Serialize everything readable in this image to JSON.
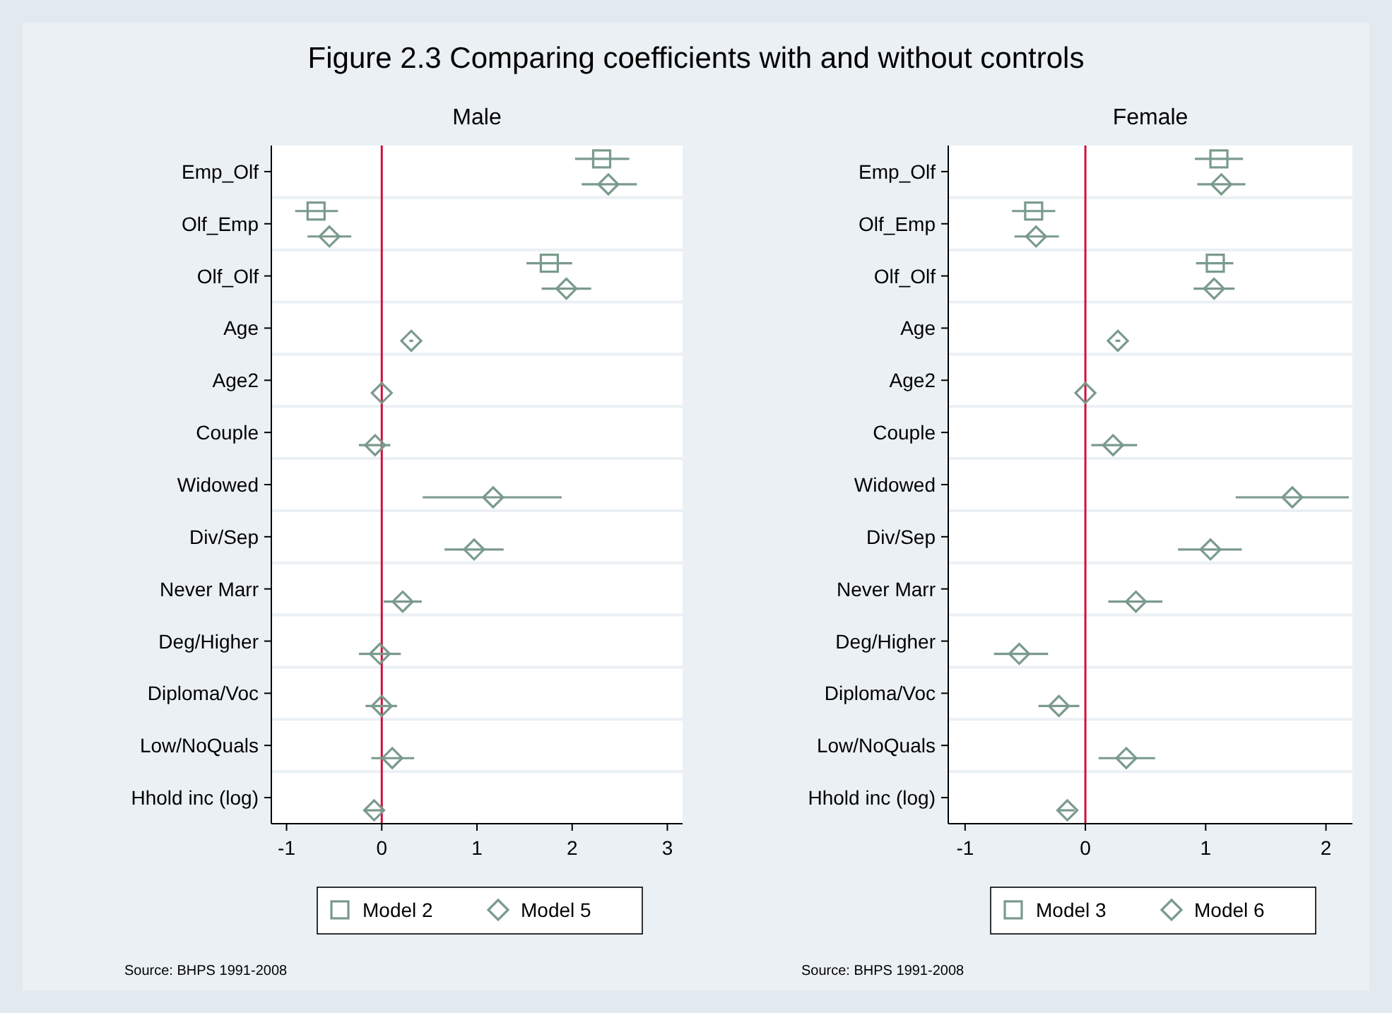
{
  "chart_data": [
    {
      "type": "scatter",
      "title": "Figure 2.3 Comparing coefficients with and without controls",
      "subtitle": "Male",
      "orientation": "horizontal",
      "categories": [
        "Emp_Olf",
        "Olf_Emp",
        "Olf_Olf",
        "Age",
        "Age2",
        "Couple",
        "Widowed",
        "Div/Sep",
        "Never Marr",
        "Deg/Higher",
        "Diploma/Voc",
        "Low/NoQuals",
        "Hhold inc (log)"
      ],
      "series": [
        {
          "name": "Model 2",
          "color": "#7a9a8c",
          "marker": "square",
          "values": [
            2.31,
            -0.69,
            1.76,
            null,
            null,
            null,
            null,
            null,
            null,
            null,
            null,
            null,
            null
          ],
          "errors": [
            [
              2.03,
              2.6
            ],
            [
              -0.91,
              -0.46
            ],
            [
              1.52,
              2.0
            ],
            null,
            null,
            null,
            null,
            null,
            null,
            null,
            null,
            null,
            null
          ]
        },
        {
          "name": "Model 5",
          "color": "#7a9a8c",
          "marker": "diamond",
          "values": [
            2.38,
            -0.55,
            1.94,
            0.31,
            0.0,
            -0.07,
            1.17,
            0.97,
            0.22,
            -0.02,
            0.0,
            0.11,
            -0.08
          ],
          "errors": [
            [
              2.1,
              2.68
            ],
            [
              -0.78,
              -0.32
            ],
            [
              1.68,
              2.2
            ],
            [
              0.29,
              0.33
            ],
            null,
            [
              -0.24,
              0.09
            ],
            [
              0.43,
              1.89
            ],
            [
              0.66,
              1.28
            ],
            [
              0.02,
              0.42
            ],
            [
              -0.24,
              0.2
            ],
            [
              -0.17,
              0.16
            ],
            [
              -0.11,
              0.34
            ],
            [
              -0.17,
              0.01
            ]
          ]
        }
      ],
      "xlim": [
        -1.16,
        3.16
      ],
      "xticks": [
        -1,
        0,
        1,
        2,
        3
      ],
      "ref_lines": [
        {
          "axis": "x",
          "value": 0,
          "color": "#d0103a"
        }
      ],
      "grid": "y",
      "legend": "bottom",
      "annotations": [
        "Source: BHPS 1991-2008"
      ]
    },
    {
      "type": "scatter",
      "title": "Female",
      "orientation": "horizontal",
      "categories": [
        "Emp_Olf",
        "Olf_Emp",
        "Olf_Olf",
        "Age",
        "Age2",
        "Couple",
        "Widowed",
        "Div/Sep",
        "Never Marr",
        "Deg/Higher",
        "Diploma/Voc",
        "Low/NoQuals",
        "Hhold inc (log)"
      ],
      "series": [
        {
          "name": "Model 3",
          "color": "#7a9a8c",
          "marker": "square",
          "values": [
            1.11,
            -0.43,
            1.08,
            null,
            null,
            null,
            null,
            null,
            null,
            null,
            null,
            null,
            null
          ],
          "errors": [
            [
              0.91,
              1.31
            ],
            [
              -0.61,
              -0.25
            ],
            [
              0.92,
              1.23
            ],
            null,
            null,
            null,
            null,
            null,
            null,
            null,
            null,
            null,
            null
          ]
        },
        {
          "name": "Model 6",
          "color": "#7a9a8c",
          "marker": "diamond",
          "values": [
            1.13,
            -0.41,
            1.07,
            0.27,
            0.0,
            0.23,
            1.72,
            1.04,
            0.42,
            -0.55,
            -0.22,
            0.34,
            -0.15
          ],
          "errors": [
            [
              0.93,
              1.33
            ],
            [
              -0.59,
              -0.22
            ],
            [
              0.9,
              1.24
            ],
            [
              0.25,
              0.29
            ],
            null,
            [
              0.05,
              0.43
            ],
            [
              1.25,
              2.19
            ],
            [
              0.77,
              1.3
            ],
            [
              0.19,
              0.64
            ],
            [
              -0.76,
              -0.31
            ],
            [
              -0.39,
              -0.05
            ],
            [
              0.11,
              0.58
            ],
            [
              -0.22,
              -0.09
            ]
          ]
        }
      ],
      "xlim": [
        -1.14,
        2.22
      ],
      "xticks": [
        -1,
        0,
        1,
        2
      ],
      "ref_lines": [
        {
          "axis": "x",
          "value": 0,
          "color": "#d0103a"
        }
      ],
      "grid": "y",
      "legend": "bottom",
      "annotations": [
        "Source: BHPS 1991-2008"
      ]
    }
  ]
}
